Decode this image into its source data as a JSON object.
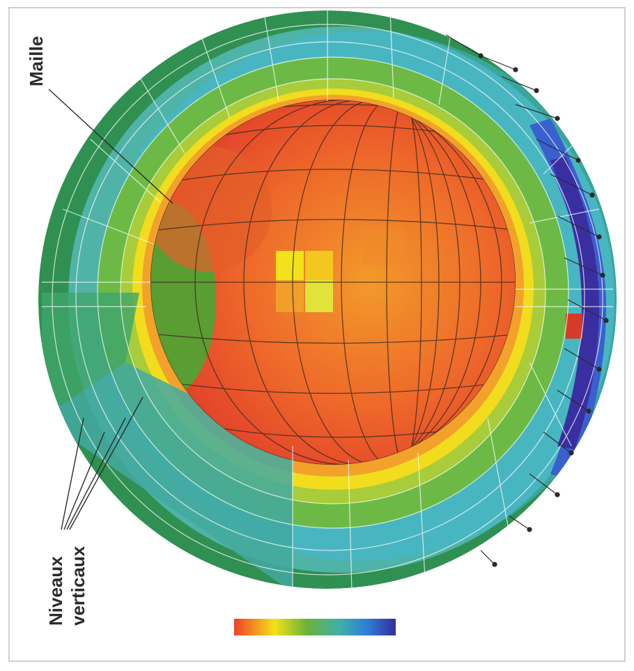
{
  "labels": {
    "mesh": "Maille",
    "vertical_levels_line1": "Niveaux",
    "vertical_levels_line2": "verticaux"
  },
  "colors": {
    "core_red": "#e8452c",
    "core_orange": "#f07a2a",
    "inner_yellow": "#f2e21a",
    "green": "#5fae3a",
    "dark_green": "#2e8f4e",
    "teal": "#4fb3a8",
    "cyan": "#43b8d6",
    "blue": "#2f6fd0",
    "indigo": "#3a2fa0"
  },
  "colorbar": {
    "stops": [
      "#f0402a",
      "#f2e21a",
      "#5fae3a",
      "#3fb0a8",
      "#2f7fd8",
      "#332f9a"
    ]
  }
}
